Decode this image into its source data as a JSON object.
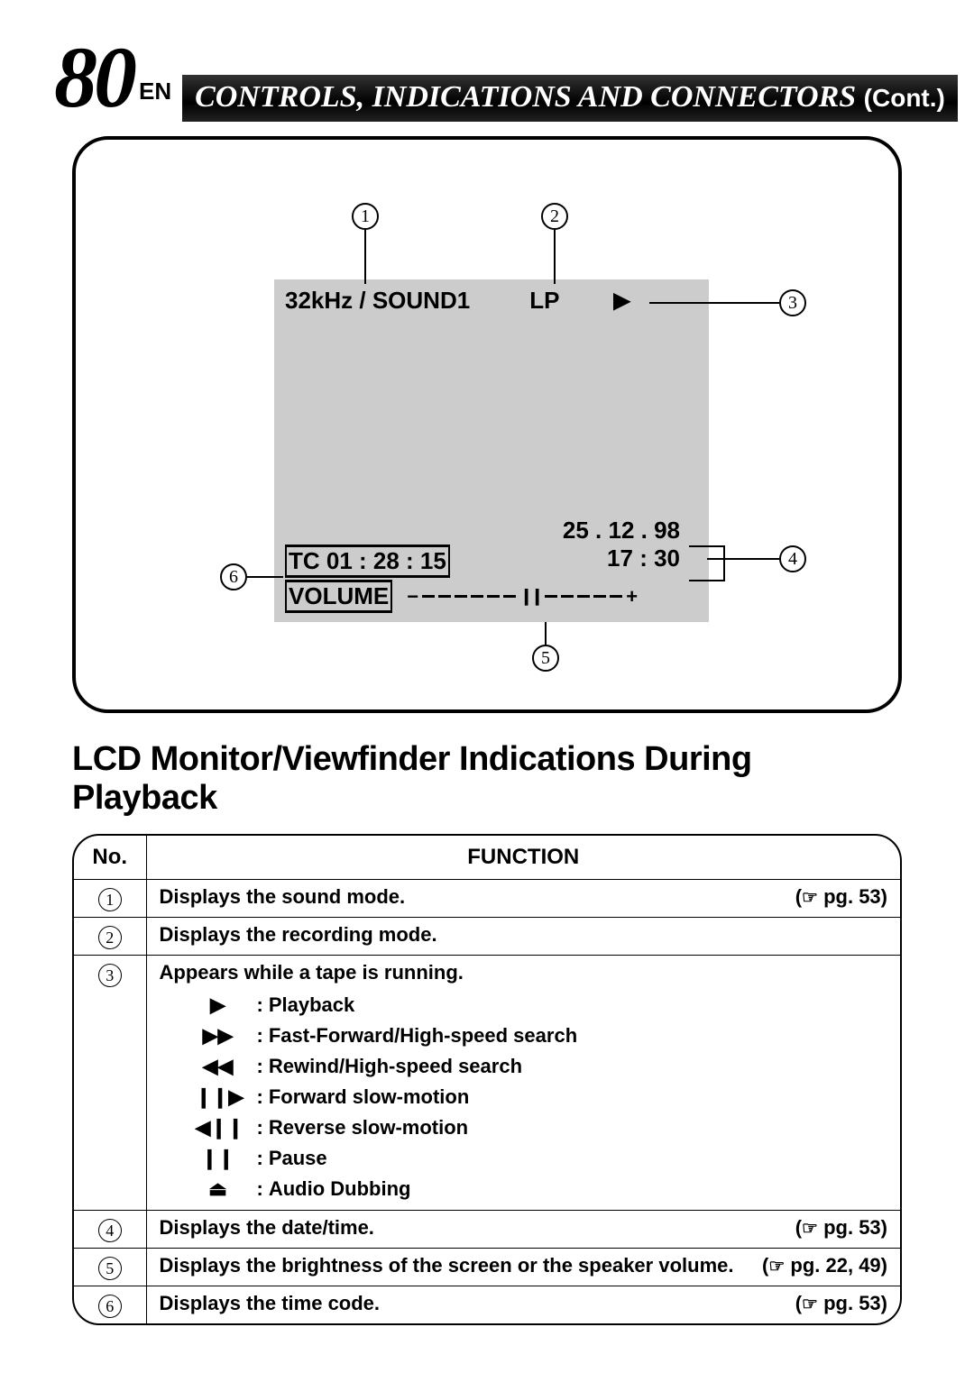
{
  "page": {
    "number": "80",
    "en": "EN",
    "title": "CONTROLS, INDICATIONS AND CONNECTORS",
    "cont": "(Cont.)"
  },
  "lcd": {
    "sound": "32kHz / SOUND1",
    "mode": "LP",
    "date": "25 . 12 . 98",
    "tc": "TC  01 : 28 : 15",
    "time": "17 : 30",
    "volume_label": "VOLUME",
    "minus": "−",
    "plus": "+"
  },
  "callouts": [
    "1",
    "2",
    "3",
    "4",
    "5",
    "6"
  ],
  "section_title": "LCD Monitor/Viewfinder Indications During Playback",
  "table": {
    "headers": {
      "no": "No.",
      "function": "FUNCTION"
    },
    "rows": [
      {
        "n": "1",
        "text": "Displays the sound mode.",
        "ref": "pg. 53"
      },
      {
        "n": "2",
        "text": "Displays the recording mode.",
        "ref": ""
      },
      {
        "n": "3",
        "text": "Appears while a tape is running.",
        "ref": "",
        "sub": [
          {
            "icon": "▶",
            "label": "Playback"
          },
          {
            "icon": "▶▶",
            "label": "Fast-Forward/High-speed search"
          },
          {
            "icon": "◀◀",
            "label": "Rewind/High-speed search"
          },
          {
            "icon": "❙❙▶",
            "label": "Forward slow-motion"
          },
          {
            "icon": "◀❙❙",
            "label": "Reverse slow-motion"
          },
          {
            "icon": "❙❙",
            "label": "Pause"
          },
          {
            "icon": "⏏",
            "label": "Audio Dubbing"
          }
        ]
      },
      {
        "n": "4",
        "text": "Displays the date/time.",
        "ref": "pg. 53"
      },
      {
        "n": "5",
        "text": "Displays the brightness of the screen or the speaker volume.",
        "ref": "pg. 22, 49"
      },
      {
        "n": "6",
        "text": "Displays the time code.",
        "ref": "pg. 53"
      }
    ]
  },
  "colors": {
    "lcd_bg": "#cccccc",
    "text": "#000000",
    "title_bg": "#1a1a1a",
    "page_bg": "#ffffff"
  }
}
